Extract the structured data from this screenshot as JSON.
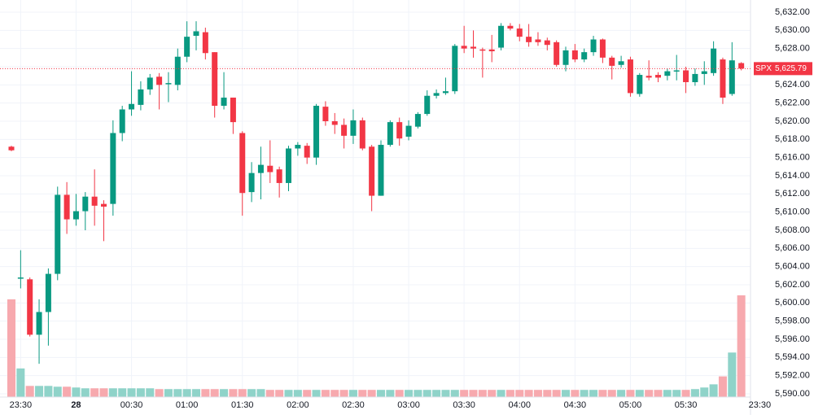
{
  "chart_data": {
    "type": "candlestick",
    "up_color": "#089981",
    "down_color": "#f23645",
    "up_volume_color": "#8fd3c9",
    "down_volume_color": "#f7a9ae",
    "grid": true,
    "ylim": [
      5590,
      5632
    ],
    "yticks": [
      {
        "value": 5590,
        "label": "5,590.00"
      },
      {
        "value": 5592,
        "label": "5,592.00"
      },
      {
        "value": 5594,
        "label": "5,594.00"
      },
      {
        "value": 5596,
        "label": "5,596.00"
      },
      {
        "value": 5598,
        "label": "5,598.00"
      },
      {
        "value": 5600,
        "label": "5,600.00"
      },
      {
        "value": 5602,
        "label": "5,602.00"
      },
      {
        "value": 5604,
        "label": "5,604.00"
      },
      {
        "value": 5606,
        "label": "5,606.00"
      },
      {
        "value": 5608,
        "label": "5,608.00"
      },
      {
        "value": 5610,
        "label": "5,610.00"
      },
      {
        "value": 5612,
        "label": "5,612.00"
      },
      {
        "value": 5614,
        "label": "5,614.00"
      },
      {
        "value": 5616,
        "label": "5,616.00"
      },
      {
        "value": 5618,
        "label": "5,618.00"
      },
      {
        "value": 5620,
        "label": "5,620.00"
      },
      {
        "value": 5622,
        "label": "5,622.00"
      },
      {
        "value": 5624,
        "label": "5,624.00"
      },
      {
        "value": 5626,
        "label": "5,626.00"
      },
      {
        "value": 5628,
        "label": "5,628.00"
      },
      {
        "value": 5630,
        "label": "5,630.00"
      },
      {
        "value": 5632,
        "label": "5,632.00"
      }
    ],
    "xticks": [
      {
        "value": 1,
        "label": "23:30"
      },
      {
        "value": 7,
        "label": "28"
      },
      {
        "value": 13,
        "label": "00:30"
      },
      {
        "value": 19,
        "label": "01:00"
      },
      {
        "value": 25,
        "label": "01:30"
      },
      {
        "value": 31,
        "label": "02:00"
      },
      {
        "value": 37,
        "label": "02:30"
      },
      {
        "value": 43,
        "label": "03:00"
      },
      {
        "value": 49,
        "label": "03:30"
      },
      {
        "value": 55,
        "label": "04:00"
      },
      {
        "value": 61,
        "label": "04:30"
      },
      {
        "value": 67,
        "label": "05:00"
      },
      {
        "value": 73,
        "label": "05:30"
      },
      {
        "value": 81,
        "label": "23:30"
      }
    ],
    "last": {
      "label": "SPX",
      "value": 5625.79,
      "value_label": "5,625.79"
    },
    "open": [
      5617.2,
      5602.7,
      5602.6,
      5596.5,
      5599.0,
      5603.2,
      5611.9,
      5609.2,
      5610.1,
      5611.7,
      5610.9,
      5610.9,
      5618.7,
      5621.3,
      5621.8,
      5623.5,
      5624.9,
      5624.1,
      5624.0,
      5627.1,
      5629.4,
      5629.8,
      5627.6,
      5621.7,
      5622.6,
      5618.7,
      5612.2,
      5614.3,
      5615.1,
      5614.7,
      5613.2,
      5617.0,
      5617.3,
      5616.0,
      5621.6,
      5620.0,
      5619.6,
      5618.4,
      5620.1,
      5617.2,
      5611.8,
      5617.4,
      5619.9,
      5618.3,
      5619.4,
      5620.8,
      5622.8,
      5623.1,
      5623.3,
      5628.3,
      5628.2,
      5627.9,
      5627.9,
      5628.1,
      5630.5,
      5630.2,
      5629.3,
      5629.0,
      5628.9,
      5628.7,
      5626.2,
      5627.8,
      5626.8,
      5627.6,
      5629.0,
      5627.0,
      5626.2,
      5626.8,
      5623.0,
      5625.0,
      5625.1,
      5625.0,
      5625.5,
      5625.6,
      5624.3,
      5625.2,
      5625.3,
      5626.8,
      5623.0,
      5626.4
    ],
    "high": [
      5617.3,
      5605.8,
      5602.8,
      5600.4,
      5603.8,
      5612.8,
      5613.3,
      5612.0,
      5612.2,
      5614.7,
      5611.3,
      5620.1,
      5621.7,
      5625.5,
      5624.4,
      5625.2,
      5625.3,
      5625.4,
      5628.0,
      5631.0,
      5631.0,
      5630.3,
      5627.6,
      5625.4,
      5622.6,
      5618.9,
      5615.5,
      5617.2,
      5617.9,
      5615.0,
      5617.3,
      5617.7,
      5617.6,
      5621.9,
      5622.2,
      5620.9,
      5620.3,
      5621.3,
      5620.4,
      5617.4,
      5617.9,
      5620.1,
      5620.4,
      5620.1,
      5621.0,
      5623.4,
      5623.5,
      5624.8,
      5628.5,
      5630.5,
      5630.0,
      5628.1,
      5629.5,
      5630.8,
      5630.8,
      5630.7,
      5630.7,
      5629.8,
      5629.2,
      5628.9,
      5628.2,
      5628.5,
      5628.0,
      5629.4,
      5629.1,
      5627.2,
      5627.2,
      5627.1,
      5625.3,
      5626.7,
      5625.4,
      5625.8,
      5627.3,
      5626.0,
      5625.8,
      5626.6,
      5628.8,
      5627.0,
      5628.7,
      5626.5
    ],
    "low": [
      5616.7,
      5601.6,
      5596.3,
      5593.3,
      5595.3,
      5602.5,
      5607.6,
      5608.5,
      5608.0,
      5608.5,
      5606.8,
      5609.6,
      5617.8,
      5620.6,
      5621.2,
      5622.9,
      5621.3,
      5622.1,
      5623.4,
      5626.5,
      5627.8,
      5626.8,
      5620.4,
      5621.3,
      5618.6,
      5609.6,
      5611.1,
      5611.4,
      5613.2,
      5611.6,
      5612.3,
      5616.2,
      5615.3,
      5615.2,
      5619.5,
      5618.6,
      5617.0,
      5617.5,
      5616.8,
      5610.1,
      5611.8,
      5617.2,
      5617.3,
      5617.9,
      5619.2,
      5620.6,
      5622.5,
      5622.9,
      5623.0,
      5627.5,
      5627.0,
      5624.8,
      5626.5,
      5627.8,
      5630.0,
      5628.8,
      5628.2,
      5628.3,
      5627.8,
      5626.0,
      5625.5,
      5626.5,
      5626.5,
      5627.2,
      5626.4,
      5624.6,
      5625.9,
      5622.7,
      5622.7,
      5624.5,
      5624.3,
      5624.5,
      5624.5,
      5623.1,
      5623.9,
      5624.0,
      5625.0,
      5621.9,
      5622.8,
      5625.6
    ],
    "close": [
      5616.8,
      5602.8,
      5596.5,
      5599.0,
      5603.2,
      5611.9,
      5609.2,
      5610.1,
      5611.7,
      5610.7,
      5610.6,
      5618.7,
      5621.3,
      5621.9,
      5623.5,
      5624.8,
      5624.0,
      5624.2,
      5627.1,
      5629.3,
      5629.9,
      5627.5,
      5621.7,
      5622.6,
      5619.9,
      5612.1,
      5614.3,
      5615.2,
      5614.4,
      5613.2,
      5617.0,
      5617.4,
      5616.0,
      5621.7,
      5620.0,
      5619.6,
      5618.4,
      5620.1,
      5617.0,
      5611.8,
      5617.4,
      5619.9,
      5618.1,
      5619.5,
      5620.8,
      5622.8,
      5623.1,
      5623.3,
      5628.3,
      5628.0,
      5628.0,
      5627.8,
      5627.7,
      5630.5,
      5630.2,
      5629.3,
      5628.7,
      5628.7,
      5628.4,
      5626.2,
      5627.8,
      5626.8,
      5627.6,
      5629.0,
      5627.0,
      5626.1,
      5626.6,
      5623.1,
      5625.1,
      5624.8,
      5624.8,
      5625.5,
      5625.6,
      5624.3,
      5625.2,
      5625.5,
      5628.0,
      5622.6,
      5626.7,
      5625.8
    ],
    "volume": [
      123,
      36,
      14,
      14,
      14,
      13,
      13,
      12,
      11,
      11,
      11,
      11,
      11,
      11,
      11,
      11,
      10,
      10,
      10,
      10,
      10,
      10,
      10,
      10,
      10,
      10,
      10,
      10,
      9,
      9,
      9,
      9,
      9,
      9,
      9,
      9,
      9,
      9,
      9,
      9,
      9,
      9,
      9,
      9,
      9,
      9,
      9,
      9,
      9,
      9,
      9,
      9,
      9,
      9,
      9,
      9,
      9,
      9,
      9,
      9,
      9,
      9,
      9,
      9,
      9,
      9,
      9,
      9,
      9,
      9,
      9,
      9,
      9,
      9,
      10,
      12,
      16,
      26,
      56,
      128
    ]
  }
}
